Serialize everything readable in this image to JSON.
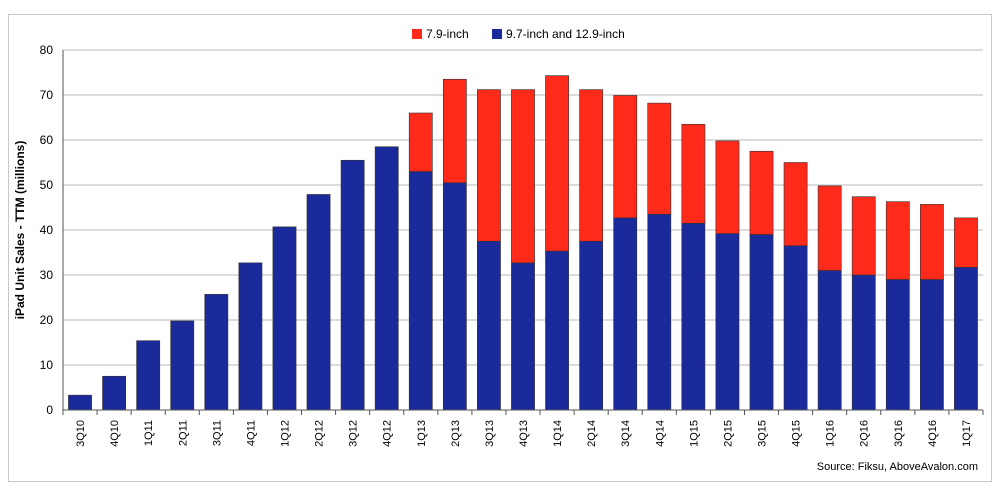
{
  "chart_data": {
    "type": "bar",
    "stacked": true,
    "categories": [
      "3Q10",
      "4Q10",
      "1Q11",
      "2Q11",
      "3Q11",
      "4Q11",
      "1Q12",
      "2Q12",
      "3Q12",
      "4Q12",
      "1Q13",
      "2Q13",
      "3Q13",
      "4Q13",
      "1Q14",
      "2Q14",
      "3Q14",
      "4Q14",
      "1Q15",
      "2Q15",
      "3Q15",
      "4Q15",
      "1Q16",
      "2Q16",
      "3Q16",
      "4Q16",
      "1Q17"
    ],
    "series": [
      {
        "name": "9.7-inch and 12.9-inch",
        "color": "#1b2a9b",
        "values": [
          3.3,
          7.5,
          15.4,
          19.8,
          25.7,
          32.7,
          40.7,
          47.9,
          55.5,
          58.5,
          53,
          50.5,
          37.5,
          32.7,
          35.3,
          37.5,
          42.7,
          43.5,
          41.5,
          39.2,
          39,
          36.5,
          31,
          30,
          29,
          29,
          31.7
        ]
      },
      {
        "name": "7.9-inch",
        "color": "#ff2a1a",
        "values": [
          0,
          0,
          0,
          0,
          0,
          0,
          0,
          0,
          0,
          0,
          13,
          23,
          33.7,
          38.5,
          39,
          33.7,
          27.2,
          24.7,
          22,
          20.6,
          18.5,
          18.5,
          18.8,
          17.4,
          17.3,
          16.7,
          11
        ]
      }
    ],
    "ylabel": "iPad Unit Sales - TTM (millions)",
    "xlabel": "",
    "ylim": [
      0,
      80
    ],
    "yticks": [
      0,
      10,
      20,
      30,
      40,
      50,
      60,
      70,
      80
    ],
    "grid": true,
    "legend_position": "top-center",
    "source": "Source: Fiksu, AboveAvalon.com"
  }
}
